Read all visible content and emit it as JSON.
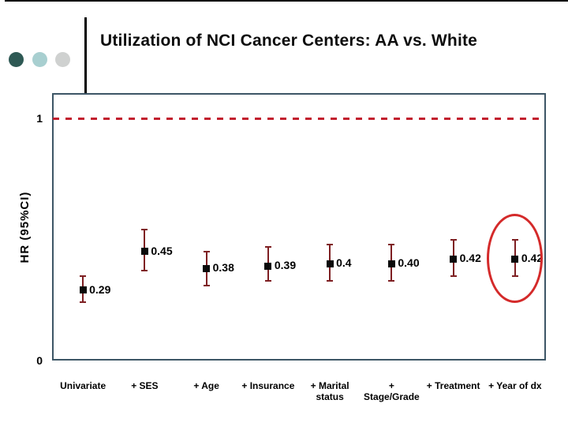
{
  "slide": {
    "title": "Utilization of NCI Cancer Centers: AA vs. White",
    "decor_dot_colors": [
      "#2e5954",
      "#a8cfd0",
      "#cfd1d0"
    ]
  },
  "chart_data": {
    "type": "scatter",
    "title": "Utilization of NCI Cancer Centers: AA vs. White",
    "subtitle": "",
    "xlabel": "",
    "ylabel": "HR (95%CI)",
    "ylim": [
      0,
      1.1
    ],
    "grid": false,
    "legend": "none",
    "yticks": [
      {
        "value": 1,
        "label": "1"
      },
      {
        "value": 0,
        "label": "0"
      }
    ],
    "reference_line": {
      "value": 1,
      "style": "dashed"
    },
    "categories": [
      "Univariate",
      "+ SES",
      "+ Age",
      "+ Insurance",
      "+ Marital status",
      "+ Stage/Grade",
      "+ Treatment",
      "+ Year of dx"
    ],
    "points": [
      {
        "category": "Univariate",
        "axis_label_lines": [
          "Univariate"
        ],
        "hr": 0.29,
        "label": "0.29",
        "ci_low": 0.24,
        "ci_high": 0.35,
        "circled": false
      },
      {
        "category": "+ SES",
        "axis_label_lines": [
          "+ SES"
        ],
        "hr": 0.45,
        "label": "0.45",
        "ci_low": 0.37,
        "ci_high": 0.54,
        "circled": false
      },
      {
        "category": "+ Age",
        "axis_label_lines": [
          "+ Age"
        ],
        "hr": 0.38,
        "label": "0.38",
        "ci_low": 0.31,
        "ci_high": 0.45,
        "circled": false
      },
      {
        "category": "+ Insurance",
        "axis_label_lines": [
          "+ Insurance"
        ],
        "hr": 0.39,
        "label": "0.39",
        "ci_low": 0.33,
        "ci_high": 0.47,
        "circled": false
      },
      {
        "category": "+ Marital status",
        "axis_label_lines": [
          "+ Marital",
          "status"
        ],
        "hr": 0.4,
        "label": "0.4",
        "ci_low": 0.33,
        "ci_high": 0.48,
        "circled": false
      },
      {
        "category": "+ Stage/Grade",
        "axis_label_lines": [
          "+",
          "Stage/Grade"
        ],
        "hr": 0.4,
        "label": "0.40",
        "ci_low": 0.33,
        "ci_high": 0.48,
        "circled": false
      },
      {
        "category": "+ Treatment",
        "axis_label_lines": [
          "+ Treatment"
        ],
        "hr": 0.42,
        "label": "0.42",
        "ci_low": 0.35,
        "ci_high": 0.5,
        "circled": false
      },
      {
        "category": "+ Year of dx",
        "axis_label_lines": [
          "+ Year of dx"
        ],
        "hr": 0.42,
        "label": "0.42",
        "ci_low": 0.35,
        "ci_high": 0.5,
        "circled": true
      }
    ],
    "highlight": {
      "point_index": 7,
      "shape": "ellipse"
    },
    "colors": {
      "error_bar": "#7e1f22",
      "marker": "#0a0a0a",
      "reference_line": "#c21f2e",
      "highlight": "#d42a2a",
      "plot_border": "#3d5666",
      "text": "#000000"
    }
  }
}
